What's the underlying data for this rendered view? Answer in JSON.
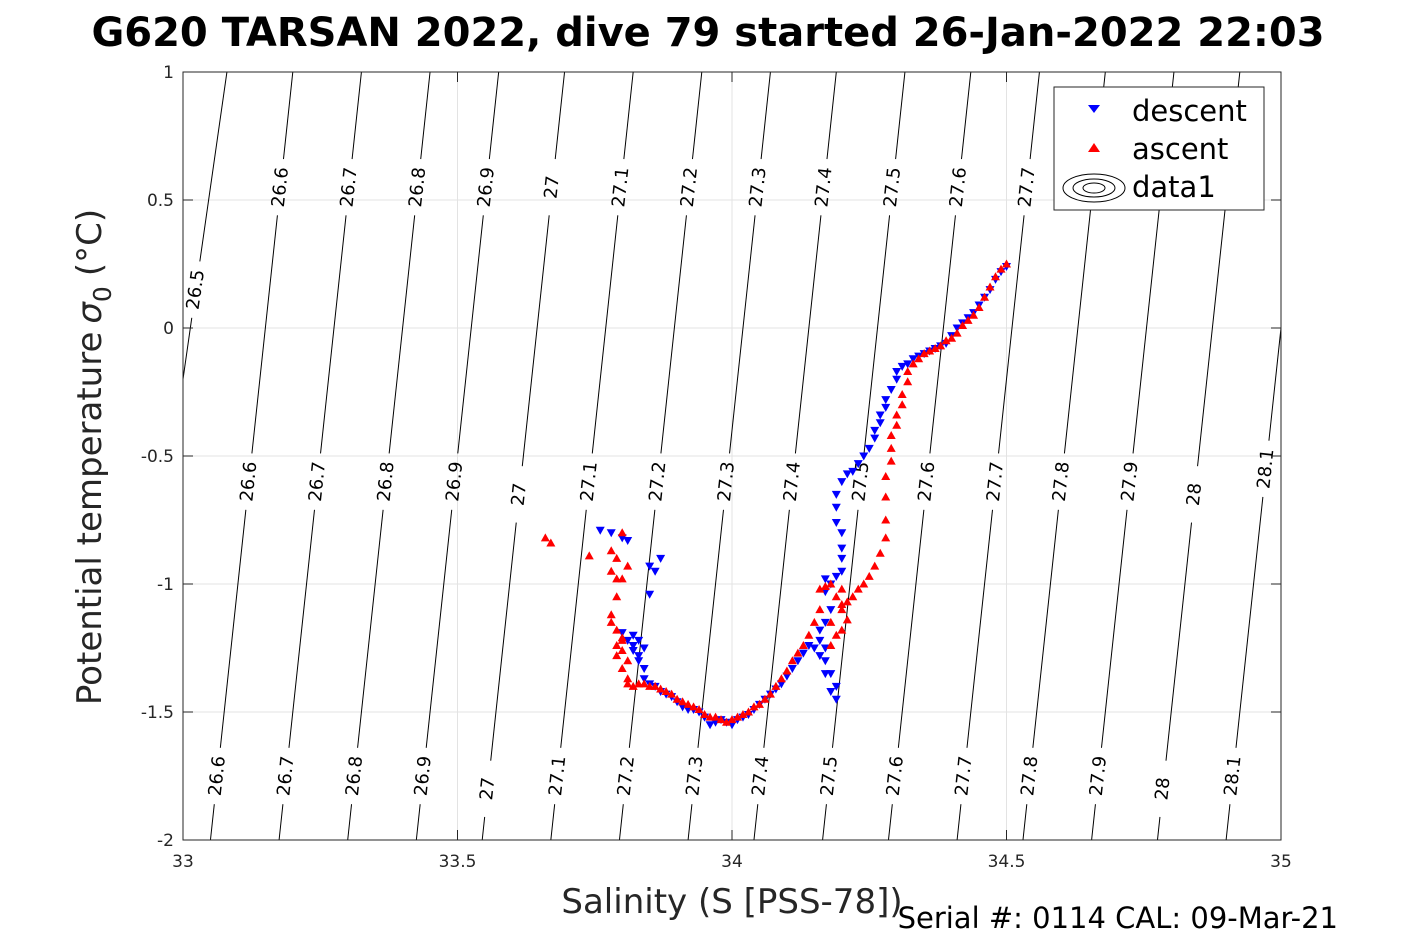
{
  "chart_data": {
    "type": "scatter",
    "title": "G620 TARSAN 2022, dive 79 started 26-Jan-2022 22:03",
    "xlabel": "Salinity (S [PSS-78])",
    "ylabel": "Potential temperature",
    "ylabel_symbol": "σ",
    "ylabel_subscript": "0",
    "ylabel_unit": "(°C)",
    "xlim": [
      33,
      35
    ],
    "ylim": [
      -2,
      1
    ],
    "xticks": [
      33,
      33.5,
      34,
      34.5,
      35
    ],
    "xtick_labels": [
      "33",
      "33.5",
      "34",
      "34.5",
      "35"
    ],
    "yticks": [
      -2,
      -1.5,
      -1,
      -0.5,
      0,
      0.5,
      1
    ],
    "ytick_labels": [
      "-2",
      "-1.5",
      "-1",
      "-0.5",
      "0",
      "0.5",
      "1"
    ],
    "grid": true,
    "legend_position": "top-right",
    "legend": [
      {
        "label": "descent",
        "marker": "triangle-down",
        "color": "#0000ff"
      },
      {
        "label": "ascent",
        "marker": "triangle-up",
        "color": "#ff0000"
      },
      {
        "label": "data1",
        "marker": "contour",
        "color": "#000000"
      }
    ],
    "footer": "Serial #: 0114  CAL: 09-Mar-21",
    "isopycnals": [
      {
        "sigma": 26.5,
        "bottom_s": 32.88,
        "top_s": 33.08,
        "label": "26.5",
        "labels_at": [
          0.15
        ]
      },
      {
        "sigma": 26.6,
        "bottom_s": 33.05,
        "top_s": 33.2,
        "label": "26.6",
        "labels_at": [
          -0.6,
          0.55,
          -1.75
        ]
      },
      {
        "sigma": 26.7,
        "bottom_s": 33.175,
        "top_s": 33.325,
        "label": "26.7",
        "labels_at": [
          -0.6,
          0.55,
          -1.75
        ]
      },
      {
        "sigma": 26.8,
        "bottom_s": 33.3,
        "top_s": 33.45,
        "label": "26.8",
        "labels_at": [
          -0.6,
          0.55,
          -1.75
        ]
      },
      {
        "sigma": 26.9,
        "bottom_s": 33.425,
        "top_s": 33.575,
        "label": "26.9",
        "labels_at": [
          -0.6,
          0.55,
          -1.75
        ]
      },
      {
        "sigma": 27.0,
        "bottom_s": 33.545,
        "top_s": 33.695,
        "label": "27",
        "labels_at": [
          -0.65,
          0.55,
          -1.8
        ]
      },
      {
        "sigma": 27.1,
        "bottom_s": 33.67,
        "top_s": 33.82,
        "label": "27.1",
        "labels_at": [
          -0.6,
          0.55,
          -1.75
        ]
      },
      {
        "sigma": 27.2,
        "bottom_s": 33.795,
        "top_s": 33.945,
        "label": "27.2",
        "labels_at": [
          -0.6,
          0.55,
          -1.75
        ]
      },
      {
        "sigma": 27.3,
        "bottom_s": 33.92,
        "top_s": 34.07,
        "label": "27.3",
        "labels_at": [
          -0.6,
          0.55,
          -1.75
        ]
      },
      {
        "sigma": 27.4,
        "bottom_s": 34.04,
        "top_s": 34.19,
        "label": "27.4",
        "labels_at": [
          -0.6,
          0.55,
          -1.75
        ]
      },
      {
        "sigma": 27.5,
        "bottom_s": 34.165,
        "top_s": 34.315,
        "label": "27.5",
        "labels_at": [
          -0.6,
          0.55,
          -1.75
        ]
      },
      {
        "sigma": 27.6,
        "bottom_s": 34.285,
        "top_s": 34.435,
        "label": "27.6",
        "labels_at": [
          -0.6,
          0.55,
          -1.75
        ]
      },
      {
        "sigma": 27.7,
        "bottom_s": 34.41,
        "top_s": 34.56,
        "label": "27.7",
        "labels_at": [
          -0.6,
          0.55,
          -1.75
        ]
      },
      {
        "sigma": 27.8,
        "bottom_s": 34.53,
        "top_s": 34.68,
        "label": "27.8",
        "labels_at": [
          -0.6,
          -1.75
        ]
      },
      {
        "sigma": 27.9,
        "bottom_s": 34.655,
        "top_s": 34.805,
        "label": "27.9",
        "labels_at": [
          -0.6,
          -1.75
        ]
      },
      {
        "sigma": 28.0,
        "bottom_s": 34.775,
        "top_s": 34.925,
        "label": "28",
        "labels_at": [
          -0.65,
          -1.8
        ]
      },
      {
        "sigma": 28.1,
        "bottom_s": 34.9,
        "top_s": 35.05,
        "label": "28.1",
        "labels_at": [
          -0.55,
          -1.75
        ]
      }
    ],
    "series": [
      {
        "name": "descent",
        "marker": "triangle-down",
        "color": "#0000ff",
        "points": [
          [
            34.5,
            0.24
          ],
          [
            34.49,
            0.22
          ],
          [
            34.48,
            0.19
          ],
          [
            34.47,
            0.15
          ],
          [
            34.46,
            0.12
          ],
          [
            34.45,
            0.09
          ],
          [
            34.44,
            0.06
          ],
          [
            34.43,
            0.04
          ],
          [
            34.42,
            0.02
          ],
          [
            34.41,
            0.0
          ],
          [
            34.4,
            -0.03
          ],
          [
            34.39,
            -0.06
          ],
          [
            34.38,
            -0.07
          ],
          [
            34.37,
            -0.08
          ],
          [
            34.36,
            -0.09
          ],
          [
            34.35,
            -0.1
          ],
          [
            34.34,
            -0.11
          ],
          [
            34.33,
            -0.12
          ],
          [
            34.32,
            -0.14
          ],
          [
            34.31,
            -0.15
          ],
          [
            34.3,
            -0.17
          ],
          [
            34.3,
            -0.2
          ],
          [
            34.29,
            -0.24
          ],
          [
            34.28,
            -0.28
          ],
          [
            34.28,
            -0.31
          ],
          [
            34.27,
            -0.34
          ],
          [
            34.27,
            -0.37
          ],
          [
            34.26,
            -0.4
          ],
          [
            34.26,
            -0.43
          ],
          [
            34.25,
            -0.47
          ],
          [
            34.24,
            -0.5
          ],
          [
            34.23,
            -0.53
          ],
          [
            34.22,
            -0.56
          ],
          [
            34.21,
            -0.57
          ],
          [
            34.2,
            -0.6
          ],
          [
            34.19,
            -0.65
          ],
          [
            34.19,
            -0.7
          ],
          [
            34.19,
            -0.76
          ],
          [
            34.2,
            -0.8
          ],
          [
            34.2,
            -0.86
          ],
          [
            34.2,
            -0.9
          ],
          [
            34.2,
            -0.95
          ],
          [
            34.19,
            -0.97
          ],
          [
            34.18,
            -1.0
          ],
          [
            34.17,
            -0.98
          ],
          [
            34.17,
            -1.03
          ],
          [
            34.18,
            -1.1
          ],
          [
            34.17,
            -1.15
          ],
          [
            34.16,
            -1.18
          ],
          [
            34.16,
            -1.22
          ],
          [
            34.17,
            -1.25
          ],
          [
            34.17,
            -1.3
          ],
          [
            34.18,
            -1.35
          ],
          [
            34.19,
            -1.4
          ],
          [
            34.19,
            -1.45
          ],
          [
            34.18,
            -1.42
          ],
          [
            34.17,
            -1.35
          ],
          [
            34.16,
            -1.28
          ],
          [
            34.15,
            -1.25
          ],
          [
            34.14,
            -1.24
          ],
          [
            34.13,
            -1.27
          ],
          [
            34.12,
            -1.3
          ],
          [
            34.11,
            -1.33
          ],
          [
            34.1,
            -1.36
          ],
          [
            34.09,
            -1.39
          ],
          [
            34.08,
            -1.41
          ],
          [
            34.07,
            -1.43
          ],
          [
            34.06,
            -1.45
          ],
          [
            34.05,
            -1.47
          ],
          [
            34.04,
            -1.49
          ],
          [
            34.03,
            -1.51
          ],
          [
            34.02,
            -1.52
          ],
          [
            34.01,
            -1.53
          ],
          [
            34.0,
            -1.55
          ],
          [
            33.99,
            -1.54
          ],
          [
            33.98,
            -1.53
          ],
          [
            33.97,
            -1.54
          ],
          [
            33.96,
            -1.55
          ],
          [
            33.95,
            -1.52
          ],
          [
            33.94,
            -1.5
          ],
          [
            33.93,
            -1.49
          ],
          [
            33.92,
            -1.49
          ],
          [
            33.91,
            -1.48
          ],
          [
            33.9,
            -1.46
          ],
          [
            33.89,
            -1.44
          ],
          [
            33.88,
            -1.43
          ],
          [
            33.87,
            -1.42
          ],
          [
            33.86,
            -1.4
          ],
          [
            33.85,
            -1.39
          ],
          [
            33.84,
            -1.37
          ],
          [
            33.84,
            -1.33
          ],
          [
            33.83,
            -1.28
          ],
          [
            33.82,
            -1.24
          ],
          [
            33.82,
            -1.2
          ],
          [
            33.83,
            -1.22
          ],
          [
            33.84,
            -1.25
          ],
          [
            33.83,
            -1.3
          ],
          [
            33.82,
            -1.26
          ],
          [
            33.81,
            -1.22
          ],
          [
            33.8,
            -1.19
          ],
          [
            33.85,
            -1.04
          ],
          [
            33.86,
            -0.95
          ],
          [
            33.87,
            -0.9
          ],
          [
            33.85,
            -0.93
          ],
          [
            33.81,
            -0.83
          ],
          [
            33.8,
            -0.82
          ],
          [
            33.76,
            -0.79
          ],
          [
            33.78,
            -0.8
          ]
        ]
      },
      {
        "name": "ascent",
        "marker": "triangle-up",
        "color": "#ff0000",
        "points": [
          [
            34.5,
            0.25
          ],
          [
            34.49,
            0.23
          ],
          [
            34.48,
            0.2
          ],
          [
            34.47,
            0.16
          ],
          [
            34.46,
            0.12
          ],
          [
            34.45,
            0.08
          ],
          [
            34.44,
            0.05
          ],
          [
            34.43,
            0.03
          ],
          [
            34.42,
            0.01
          ],
          [
            34.41,
            -0.02
          ],
          [
            34.4,
            -0.04
          ],
          [
            34.39,
            -0.05
          ],
          [
            34.38,
            -0.07
          ],
          [
            34.37,
            -0.08
          ],
          [
            34.36,
            -0.09
          ],
          [
            34.35,
            -0.1
          ],
          [
            34.34,
            -0.12
          ],
          [
            34.33,
            -0.14
          ],
          [
            34.32,
            -0.17
          ],
          [
            34.32,
            -0.21
          ],
          [
            34.31,
            -0.26
          ],
          [
            34.31,
            -0.3
          ],
          [
            34.3,
            -0.34
          ],
          [
            34.3,
            -0.38
          ],
          [
            34.29,
            -0.42
          ],
          [
            34.29,
            -0.47
          ],
          [
            34.29,
            -0.52
          ],
          [
            34.28,
            -0.58
          ],
          [
            34.28,
            -0.66
          ],
          [
            34.28,
            -0.75
          ],
          [
            34.28,
            -0.82
          ],
          [
            34.27,
            -0.88
          ],
          [
            34.26,
            -0.93
          ],
          [
            34.25,
            -0.97
          ],
          [
            34.24,
            -1.0
          ],
          [
            34.23,
            -1.02
          ],
          [
            34.22,
            -1.05
          ],
          [
            34.21,
            -1.07
          ],
          [
            34.2,
            -1.08
          ],
          [
            34.2,
            -1.1
          ],
          [
            34.21,
            -1.14
          ],
          [
            34.2,
            -1.18
          ],
          [
            34.19,
            -1.2
          ],
          [
            34.18,
            -1.24
          ],
          [
            34.18,
            -1.15
          ],
          [
            34.19,
            -1.05
          ],
          [
            34.2,
            -1.02
          ],
          [
            34.18,
            -1.0
          ],
          [
            34.17,
            -1.01
          ],
          [
            34.16,
            -1.02
          ],
          [
            34.16,
            -1.1
          ],
          [
            34.15,
            -1.15
          ],
          [
            34.14,
            -1.2
          ],
          [
            34.13,
            -1.24
          ],
          [
            34.12,
            -1.27
          ],
          [
            34.11,
            -1.3
          ],
          [
            34.1,
            -1.34
          ],
          [
            34.09,
            -1.37
          ],
          [
            34.08,
            -1.4
          ],
          [
            34.07,
            -1.43
          ],
          [
            34.06,
            -1.45
          ],
          [
            34.05,
            -1.47
          ],
          [
            34.04,
            -1.48
          ],
          [
            34.03,
            -1.5
          ],
          [
            34.02,
            -1.51
          ],
          [
            34.01,
            -1.52
          ],
          [
            34.0,
            -1.53
          ],
          [
            33.99,
            -1.54
          ],
          [
            33.98,
            -1.53
          ],
          [
            33.97,
            -1.52
          ],
          [
            33.96,
            -1.52
          ],
          [
            33.95,
            -1.51
          ],
          [
            33.94,
            -1.49
          ],
          [
            33.93,
            -1.48
          ],
          [
            33.92,
            -1.47
          ],
          [
            33.91,
            -1.46
          ],
          [
            33.9,
            -1.45
          ],
          [
            33.89,
            -1.43
          ],
          [
            33.88,
            -1.42
          ],
          [
            33.87,
            -1.41
          ],
          [
            33.86,
            -1.4
          ],
          [
            33.85,
            -1.4
          ],
          [
            33.84,
            -1.39
          ],
          [
            33.83,
            -1.39
          ],
          [
            33.82,
            -1.4
          ],
          [
            33.81,
            -1.39
          ],
          [
            33.81,
            -1.37
          ],
          [
            33.8,
            -1.33
          ],
          [
            33.79,
            -1.28
          ],
          [
            33.79,
            -1.24
          ],
          [
            33.8,
            -1.21
          ],
          [
            33.8,
            -1.26
          ],
          [
            33.81,
            -1.3
          ],
          [
            33.8,
            -1.22
          ],
          [
            33.79,
            -1.18
          ],
          [
            33.78,
            -1.15
          ],
          [
            33.78,
            -1.12
          ],
          [
            33.79,
            -1.05
          ],
          [
            33.79,
            -0.98
          ],
          [
            33.78,
            -0.95
          ],
          [
            33.8,
            -0.98
          ],
          [
            33.81,
            -0.93
          ],
          [
            33.79,
            -0.9
          ],
          [
            33.78,
            -0.87
          ],
          [
            33.8,
            -0.8
          ],
          [
            33.74,
            -0.89
          ],
          [
            33.66,
            -0.82
          ],
          [
            33.67,
            -0.84
          ]
        ]
      }
    ]
  }
}
